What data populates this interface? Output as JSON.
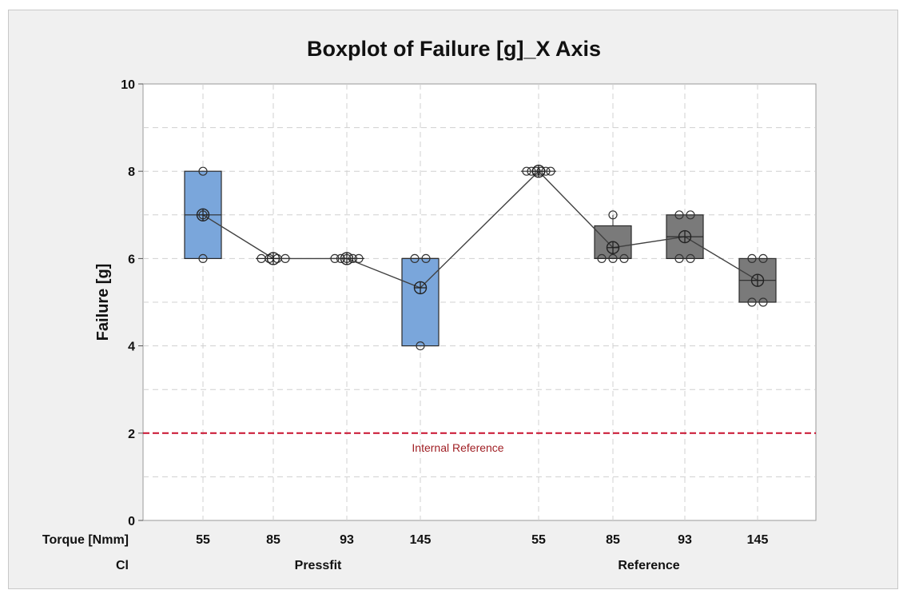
{
  "chart_data": {
    "type": "boxplot",
    "title": "Boxplot of Failure [g]_X Axis",
    "ylabel": "Failure [g]",
    "ylim": [
      0,
      10
    ],
    "yticks": [
      0,
      2,
      4,
      6,
      8,
      10
    ],
    "grid": true,
    "x_row_labels": [
      "Torque [Nmm]",
      "Cl"
    ],
    "groups": [
      {
        "name": "Pressfit",
        "color": "#7aa6db",
        "categories": [
          {
            "torque": "55",
            "q1": 6,
            "median": 7,
            "q3": 8,
            "min": 6,
            "max": 8,
            "mean": 7.0,
            "points": [
              8,
              7,
              6
            ]
          },
          {
            "torque": "85",
            "q1": 6,
            "median": 6,
            "q3": 6,
            "min": 6,
            "max": 6,
            "mean": 6.0,
            "points": [
              6,
              6,
              6,
              6
            ]
          },
          {
            "torque": "93",
            "q1": 6,
            "median": 6,
            "q3": 6,
            "min": 6,
            "max": 6,
            "mean": 6.0,
            "points": [
              6,
              6,
              6,
              6,
              6
            ]
          },
          {
            "torque": "145",
            "q1": 4,
            "median": 6,
            "q3": 6,
            "min": 4,
            "max": 6,
            "mean": 5.33,
            "points": [
              6,
              6,
              4
            ]
          }
        ]
      },
      {
        "name": "Reference",
        "color": "#7a7a7a",
        "categories": [
          {
            "torque": "55",
            "q1": 8,
            "median": 8,
            "q3": 8,
            "min": 8,
            "max": 8,
            "mean": 8.0,
            "points": [
              8,
              8,
              8,
              8,
              8,
              8
            ]
          },
          {
            "torque": "85",
            "q1": 6,
            "median": 6,
            "q3": 6.75,
            "min": 6,
            "max": 7,
            "mean": 6.25,
            "points": [
              7,
              6,
              6,
              6
            ]
          },
          {
            "torque": "93",
            "q1": 6,
            "median": 6.5,
            "q3": 7,
            "min": 6,
            "max": 7,
            "mean": 6.5,
            "points": [
              7,
              7,
              6,
              6
            ]
          },
          {
            "torque": "145",
            "q1": 5,
            "median": 5.5,
            "q3": 6,
            "min": 5,
            "max": 6,
            "mean": 5.5,
            "points": [
              6,
              6,
              5,
              5
            ]
          }
        ]
      }
    ],
    "reference_line": {
      "value": 2,
      "label": "Internal Reference",
      "color": "#c8102e"
    },
    "mean_connect_line": true
  }
}
